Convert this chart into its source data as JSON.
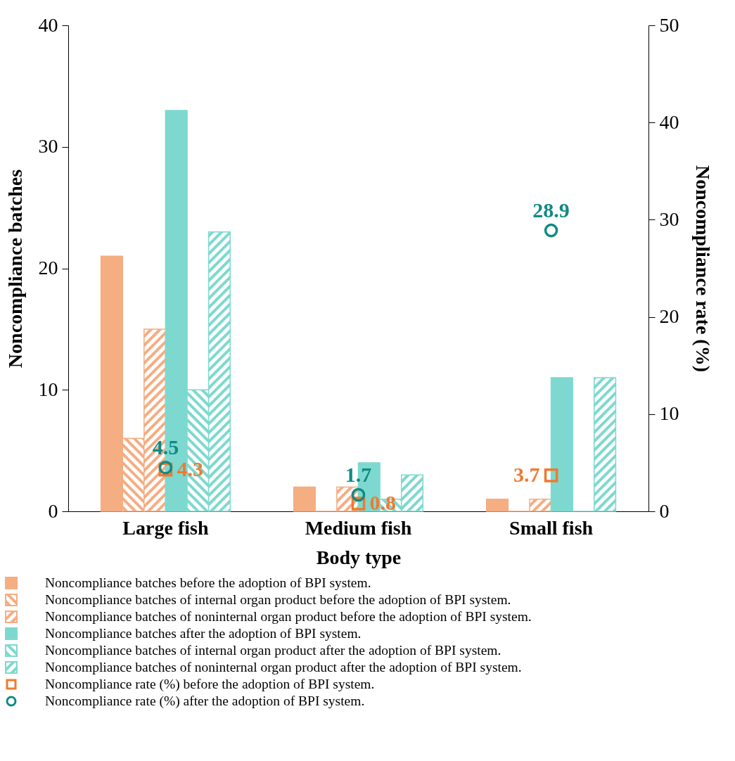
{
  "chart_data": {
    "type": "bar",
    "xlabel": "Body type",
    "ylabel": "Noncompliance batches",
    "y2label": "Noncompliance rate (%)",
    "categories": [
      "Large fish",
      "Medium fish",
      "Small fish"
    ],
    "ylim": [
      0,
      40
    ],
    "yticks": [
      0,
      10,
      20,
      30,
      40
    ],
    "y2lim": [
      0,
      50
    ],
    "y2ticks": [
      0,
      10,
      20,
      30,
      40,
      50
    ],
    "grid": false,
    "legend": "bottom",
    "series": [
      {
        "name": "Noncompliance batches before the adoption of BPI system.",
        "color": "#f5ad82",
        "values": [
          21,
          2,
          1
        ]
      },
      {
        "name": "Noncompliance batches of internal organ product before the adoption of BPI system.",
        "color": "#f5ad82",
        "values": [
          6,
          0,
          0
        ]
      },
      {
        "name": "Noncompliance batches of noninternal organ product before the adoption of BPI system.",
        "color": "#f5ad82",
        "values": [
          15,
          2,
          1
        ]
      },
      {
        "name": "Noncompliance batches after the adoption of BPI system.",
        "color": "#7dd9cf",
        "values": [
          33,
          4,
          11
        ]
      },
      {
        "name": "Noncompliance batches of internal organ product after the adoption of BPI system.",
        "color": "#7dd9cf",
        "values": [
          10,
          1,
          0
        ]
      },
      {
        "name": "Noncompliance batches of noninternal organ product after the adoption of BPI system.",
        "color": "#7dd9cf",
        "values": [
          23,
          3,
          11
        ]
      },
      {
        "name": "Noncompliance rate (%) before the adoption of BPI system.",
        "type": "scatter",
        "axis": "y2",
        "marker": "square",
        "color": "#f07a2e",
        "values": [
          4.3,
          0.8,
          3.7
        ],
        "data_labels": true
      },
      {
        "name": "Noncompliance rate (%) after the adoption of BPI system.",
        "type": "scatter",
        "axis": "y2",
        "marker": "circle",
        "color": "#128a85",
        "values": [
          4.5,
          1.7,
          28.9
        ],
        "data_labels": true
      }
    ]
  }
}
